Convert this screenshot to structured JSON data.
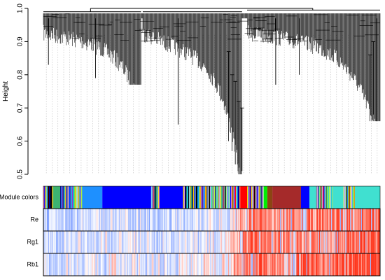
{
  "chart_data": {
    "type": "dendrogram",
    "ylabel": "Height",
    "ylim": [
      0.5,
      1.0
    ],
    "yticks": [
      {
        "value": 0.5,
        "label": "0.5"
      },
      {
        "value": 0.6,
        "label": "0.6"
      },
      {
        "value": 0.7,
        "label": "0.7"
      },
      {
        "value": 0.8,
        "label": "0.8"
      },
      {
        "value": 0.9,
        "label": "0.9"
      },
      {
        "value": 1.0,
        "label": "1.0"
      }
    ],
    "clusters": [
      {
        "from": 0.0,
        "to": 0.29,
        "top": 0.99,
        "min_leaf": 0.77,
        "merge": 0.99
      },
      {
        "from": 0.295,
        "to": 0.59,
        "top": 0.99,
        "min_leaf": 0.5,
        "merge": 0.99
      },
      {
        "from": 0.605,
        "to": 1.0,
        "top": 0.99,
        "min_leaf": 0.66,
        "merge": 0.995
      }
    ],
    "root_height": 1.0,
    "dashed_guides": 58,
    "color_rows": [
      {
        "name": "Module colors",
        "label": "Module colors"
      },
      {
        "name": "Re",
        "label": "Re"
      },
      {
        "name": "Rg1",
        "label": "Rg1"
      },
      {
        "name": "Rb1",
        "label": "Rb1"
      }
    ],
    "module_color_blocks": [
      {
        "from": 0.0,
        "to": 0.03,
        "color": "mixed"
      },
      {
        "from": 0.03,
        "to": 0.05,
        "color": "#3cb371"
      },
      {
        "from": 0.05,
        "to": 0.115,
        "color": "mixed"
      },
      {
        "from": 0.115,
        "to": 0.175,
        "color": "#1e90ff"
      },
      {
        "from": 0.175,
        "to": 0.32,
        "color": "#0000ff"
      },
      {
        "from": 0.32,
        "to": 0.345,
        "color": "mixed"
      },
      {
        "from": 0.345,
        "to": 0.415,
        "color": "#0000ff"
      },
      {
        "from": 0.415,
        "to": 0.585,
        "color": "mixed"
      },
      {
        "from": 0.585,
        "to": 0.605,
        "color": "#ff0000"
      },
      {
        "from": 0.605,
        "to": 0.655,
        "color": "mixed"
      },
      {
        "from": 0.655,
        "to": 0.665,
        "color": "#00ee00"
      },
      {
        "from": 0.665,
        "to": 0.68,
        "color": "#8b4513"
      },
      {
        "from": 0.68,
        "to": 0.765,
        "color": "#a52a2a"
      },
      {
        "from": 0.765,
        "to": 0.79,
        "color": "#0000ff"
      },
      {
        "from": 0.79,
        "to": 0.81,
        "color": "#40e0d0"
      },
      {
        "from": 0.81,
        "to": 0.86,
        "color": "mixed"
      },
      {
        "from": 0.86,
        "to": 0.89,
        "color": "#40e0d0"
      },
      {
        "from": 0.89,
        "to": 0.925,
        "color": "mixed"
      },
      {
        "from": 0.925,
        "to": 1.0,
        "color": "#40e0d0"
      }
    ],
    "trait_heatmap": {
      "scale": "blue-white-red",
      "rows": [
        {
          "name": "Re",
          "profile": [
            [
              0.0,
              0.25
            ],
            [
              0.2,
              0.4
            ],
            [
              0.35,
              0.3
            ],
            [
              0.55,
              0.45
            ],
            [
              0.62,
              0.85
            ],
            [
              0.7,
              0.7
            ],
            [
              0.8,
              0.8
            ],
            [
              1.0,
              0.9
            ]
          ]
        },
        {
          "name": "Rg1",
          "profile": [
            [
              0.0,
              0.3
            ],
            [
              0.2,
              0.45
            ],
            [
              0.35,
              0.35
            ],
            [
              0.55,
              0.5
            ],
            [
              0.62,
              0.9
            ],
            [
              0.7,
              0.75
            ],
            [
              0.8,
              0.8
            ],
            [
              1.0,
              0.95
            ]
          ]
        },
        {
          "name": "Rb1",
          "profile": [
            [
              0.0,
              0.35
            ],
            [
              0.2,
              0.5
            ],
            [
              0.35,
              0.4
            ],
            [
              0.55,
              0.55
            ],
            [
              0.62,
              0.95
            ],
            [
              0.7,
              0.8
            ],
            [
              0.8,
              0.85
            ],
            [
              1.0,
              1.0
            ]
          ]
        }
      ]
    }
  }
}
